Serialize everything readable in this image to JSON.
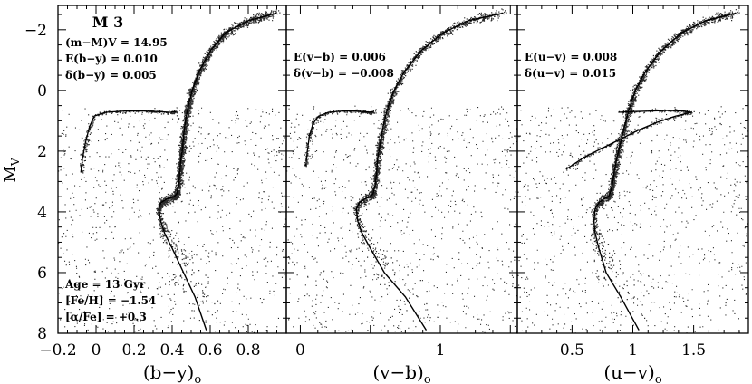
{
  "chart_data": [
    {
      "type": "scatter",
      "panel": "left",
      "cluster_label": "M 3",
      "xlabel_base": "(b−y)",
      "xlabel_sub": "o",
      "ylabel_base": "M",
      "ylabel_sub": "V",
      "xlim": [
        -0.2,
        1.0
      ],
      "ylim": [
        8,
        -2.8
      ],
      "xticks": [
        -0.2,
        0,
        0.2,
        0.4,
        0.6,
        0.8
      ],
      "xtick_labels": [
        "−0.2",
        "0",
        "0.2",
        "0.4",
        "0.6",
        "0.8"
      ],
      "yticks": [
        -2,
        0,
        2,
        4,
        6,
        8
      ],
      "ytick_labels": [
        "−2",
        "0",
        "2",
        "4",
        "6",
        "8"
      ],
      "annotations_top": [
        "(m−M)V = 14.95",
        "E(b−y) = 0.010",
        "δ(b−y) = 0.005"
      ],
      "annotations_bottom": [
        "Age = 13 Gyr",
        "[Fe/H] = −1.54",
        "[α/Fe] = +0.3"
      ],
      "isochrone": [
        [
          0.58,
          7.9
        ],
        [
          0.52,
          6.8
        ],
        [
          0.46,
          6.0
        ],
        [
          0.4,
          5.2
        ],
        [
          0.36,
          4.7
        ],
        [
          0.34,
          4.3
        ],
        [
          0.33,
          3.9
        ],
        [
          0.34,
          3.7
        ],
        [
          0.37,
          3.58
        ],
        [
          0.41,
          3.5
        ],
        [
          0.425,
          3.4
        ],
        [
          0.435,
          3.1
        ],
        [
          0.44,
          2.7
        ],
        [
          0.445,
          2.3
        ],
        [
          0.455,
          1.9
        ],
        [
          0.46,
          1.5
        ],
        [
          0.47,
          1.0
        ],
        [
          0.485,
          0.5
        ],
        [
          0.505,
          0.0
        ],
        [
          0.54,
          -0.6
        ],
        [
          0.6,
          -1.3
        ],
        [
          0.68,
          -1.9
        ],
        [
          0.8,
          -2.3
        ],
        [
          0.95,
          -2.55
        ]
      ],
      "hb_track": [
        [
          -0.08,
          2.7
        ],
        [
          -0.07,
          2.2
        ],
        [
          -0.055,
          1.7
        ],
        [
          -0.035,
          1.2
        ],
        [
          -0.01,
          0.85
        ],
        [
          0.05,
          0.72
        ],
        [
          0.15,
          0.68
        ],
        [
          0.25,
          0.68
        ],
        [
          0.33,
          0.7
        ],
        [
          0.39,
          0.72
        ],
        [
          0.42,
          0.7
        ]
      ]
    },
    {
      "type": "scatter",
      "panel": "middle",
      "xlabel_base": "(v−b)",
      "xlabel_sub": "o",
      "xlim": [
        -0.1,
        1.55
      ],
      "ylim": [
        8,
        -2.8
      ],
      "xticks": [
        0,
        0.5,
        1,
        1.5
      ],
      "xtick_labels": [
        "0",
        "",
        "1",
        ""
      ],
      "annotations_top": [
        "E(v−b) = 0.006",
        "δ(v−b) = −0.008"
      ],
      "isochrone": [
        [
          0.9,
          7.9
        ],
        [
          0.75,
          6.8
        ],
        [
          0.6,
          6.0
        ],
        [
          0.5,
          5.2
        ],
        [
          0.44,
          4.7
        ],
        [
          0.41,
          4.3
        ],
        [
          0.4,
          3.9
        ],
        [
          0.42,
          3.7
        ],
        [
          0.46,
          3.58
        ],
        [
          0.5,
          3.5
        ],
        [
          0.52,
          3.4
        ],
        [
          0.535,
          3.1
        ],
        [
          0.545,
          2.7
        ],
        [
          0.55,
          2.3
        ],
        [
          0.565,
          1.9
        ],
        [
          0.58,
          1.5
        ],
        [
          0.6,
          1.0
        ],
        [
          0.63,
          0.5
        ],
        [
          0.67,
          0.0
        ],
        [
          0.74,
          -0.6
        ],
        [
          0.86,
          -1.3
        ],
        [
          1.02,
          -1.9
        ],
        [
          1.2,
          -2.3
        ],
        [
          1.45,
          -2.55
        ]
      ],
      "hb_track": [
        [
          0.04,
          2.5
        ],
        [
          0.05,
          2.0
        ],
        [
          0.065,
          1.5
        ],
        [
          0.09,
          1.1
        ],
        [
          0.13,
          0.85
        ],
        [
          0.2,
          0.72
        ],
        [
          0.3,
          0.68
        ],
        [
          0.4,
          0.68
        ],
        [
          0.46,
          0.7
        ],
        [
          0.5,
          0.72
        ],
        [
          0.52,
          0.7
        ]
      ]
    },
    {
      "type": "scatter",
      "panel": "right",
      "xlabel_base": "(u−v)",
      "xlabel_sub": "o",
      "xlim": [
        0.05,
        1.95
      ],
      "ylim": [
        8,
        -2.8
      ],
      "xticks": [
        0.5,
        1,
        1.5
      ],
      "xtick_labels": [
        "0.5",
        "1",
        "1.5"
      ],
      "annotations_top": [
        "E(u−v) = 0.008",
        "δ(u−v) = 0.015"
      ],
      "isochrone": [
        [
          1.05,
          7.9
        ],
        [
          0.9,
          6.8
        ],
        [
          0.78,
          6.0
        ],
        [
          0.72,
          5.2
        ],
        [
          0.69,
          4.7
        ],
        [
          0.68,
          4.3
        ],
        [
          0.69,
          3.9
        ],
        [
          0.72,
          3.7
        ],
        [
          0.76,
          3.58
        ],
        [
          0.8,
          3.5
        ],
        [
          0.82,
          3.3
        ],
        [
          0.835,
          3.0
        ],
        [
          0.85,
          2.6
        ],
        [
          0.87,
          2.2
        ],
        [
          0.9,
          1.7
        ],
        [
          0.93,
          1.2
        ],
        [
          0.97,
          0.6
        ],
        [
          1.02,
          0.0
        ],
        [
          1.1,
          -0.6
        ],
        [
          1.23,
          -1.3
        ],
        [
          1.4,
          -1.9
        ],
        [
          1.6,
          -2.3
        ],
        [
          1.85,
          -2.55
        ]
      ],
      "hb_track": [
        [
          0.45,
          2.6
        ],
        [
          0.6,
          2.2
        ],
        [
          0.75,
          1.9
        ],
        [
          0.9,
          1.6
        ],
        [
          1.05,
          1.3
        ],
        [
          1.2,
          1.05
        ],
        [
          1.35,
          0.85
        ],
        [
          1.48,
          0.72
        ],
        [
          1.42,
          0.68
        ],
        [
          1.3,
          0.66
        ],
        [
          1.15,
          0.68
        ],
        [
          0.98,
          0.7
        ],
        [
          0.88,
          0.72
        ]
      ]
    }
  ]
}
